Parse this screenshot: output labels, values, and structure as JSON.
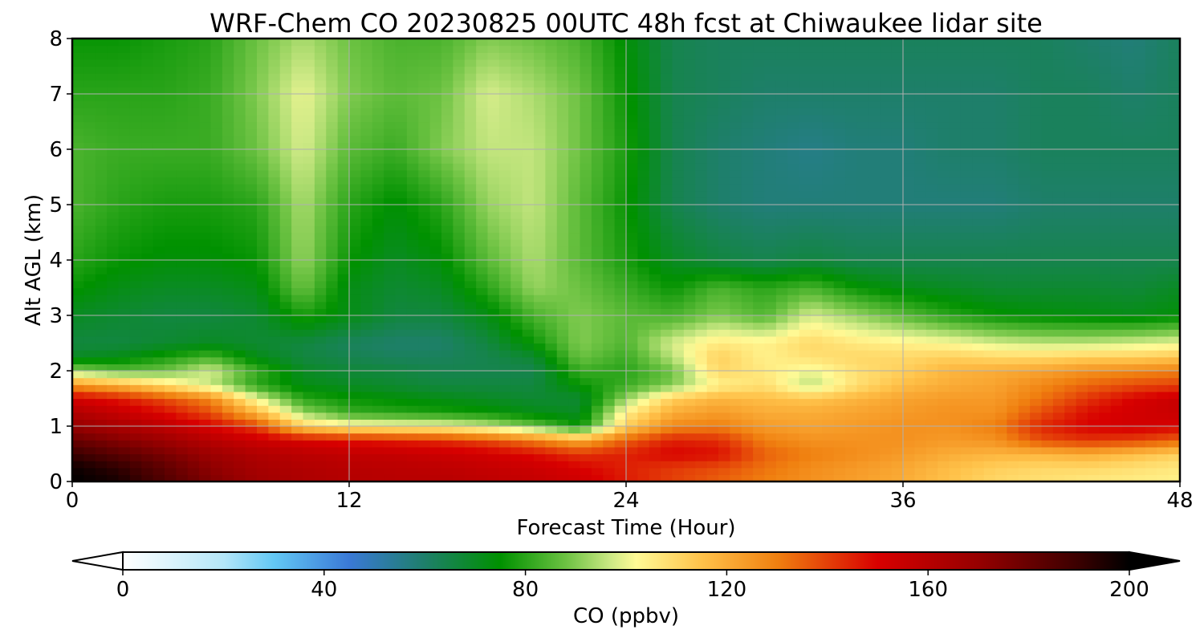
{
  "chart_data": {
    "type": "heatmap",
    "title": "WRF-Chem CO  20230825 00UTC 48h fcst at Chiwaukee lidar site",
    "xlabel": "Forecast Time (Hour)",
    "ylabel": "Alt AGL (km)",
    "xlim": [
      0,
      48
    ],
    "ylim": [
      0,
      8
    ],
    "x_ticks": [
      "0",
      "12",
      "24",
      "36",
      "48"
    ],
    "y_ticks": [
      "0",
      "1",
      "2",
      "3",
      "4",
      "5",
      "6",
      "7",
      "8"
    ],
    "grid": true,
    "x": [
      0,
      2,
      4,
      6,
      8,
      10,
      12,
      14,
      16,
      18,
      20,
      22,
      24,
      26,
      28,
      30,
      32,
      34,
      36,
      38,
      40,
      42,
      44,
      46,
      48
    ],
    "y": [
      0,
      0.25,
      0.5,
      0.75,
      1.0,
      1.25,
      1.5,
      1.75,
      2.0,
      2.25,
      2.5,
      3.0,
      3.5,
      4.0,
      5.0,
      6.0,
      7.0,
      8.0
    ],
    "z": [
      [
        200,
        196,
        185,
        175,
        167,
        163,
        161,
        160,
        160,
        158,
        156,
        153,
        146,
        140,
        135,
        130,
        126,
        123,
        120,
        115,
        110,
        108,
        106,
        105,
        104
      ],
      [
        198,
        192,
        182,
        172,
        165,
        162,
        160,
        159,
        158,
        156,
        154,
        150,
        145,
        141,
        138,
        132,
        127,
        124,
        121,
        116,
        112,
        110,
        110,
        108,
        106
      ],
      [
        190,
        183,
        176,
        168,
        162,
        159,
        157,
        156,
        154,
        152,
        148,
        142,
        145,
        150,
        148,
        135,
        130,
        127,
        124,
        120,
        118,
        118,
        120,
        116,
        112
      ],
      [
        180,
        174,
        168,
        160,
        154,
        150,
        147,
        145,
        143,
        138,
        130,
        120,
        135,
        145,
        143,
        130,
        126,
        126,
        126,
        124,
        126,
        138,
        142,
        140,
        135
      ],
      [
        170,
        164,
        158,
        150,
        140,
        112,
        105,
        103,
        102,
        97,
        88,
        76,
        112,
        128,
        130,
        124,
        122,
        124,
        126,
        126,
        130,
        144,
        150,
        152,
        150
      ],
      [
        162,
        156,
        148,
        138,
        118,
        92,
        82,
        80,
        78,
        76,
        72,
        70,
        105,
        120,
        124,
        120,
        120,
        122,
        124,
        126,
        126,
        138,
        148,
        152,
        155
      ],
      [
        152,
        146,
        138,
        128,
        100,
        80,
        76,
        74,
        72,
        70,
        68,
        68,
        92,
        112,
        118,
        116,
        114,
        118,
        122,
        124,
        124,
        132,
        142,
        150,
        155
      ],
      [
        125,
        118,
        108,
        96,
        80,
        72,
        70,
        68,
        66,
        66,
        66,
        76,
        82,
        90,
        104,
        108,
        95,
        108,
        116,
        120,
        122,
        128,
        134,
        138,
        140
      ],
      [
        92,
        86,
        88,
        98,
        82,
        70,
        67,
        66,
        64,
        64,
        64,
        82,
        80,
        88,
        110,
        106,
        100,
        108,
        112,
        118,
        120,
        122,
        126,
        128,
        130
      ],
      [
        70,
        72,
        78,
        84,
        72,
        66,
        64,
        62,
        62,
        64,
        68,
        88,
        82,
        95,
        112,
        104,
        108,
        110,
        110,
        112,
        110,
        110,
        112,
        112,
        114
      ],
      [
        66,
        66,
        68,
        70,
        68,
        66,
        62,
        60,
        60,
        66,
        76,
        90,
        85,
        98,
        106,
        104,
        110,
        106,
        104,
        102,
        98,
        96,
        96,
        98,
        100
      ],
      [
        70,
        68,
        66,
        66,
        68,
        78,
        72,
        66,
        66,
        72,
        84,
        90,
        86,
        84,
        90,
        85,
        98,
        92,
        86,
        80,
        76,
        74,
        73,
        72,
        74
      ],
      [
        76,
        72,
        70,
        70,
        72,
        88,
        72,
        68,
        70,
        80,
        92,
        88,
        82,
        76,
        84,
        80,
        84,
        76,
        72,
        70,
        68,
        68,
        68,
        67,
        70
      ],
      [
        80,
        76,
        74,
        74,
        76,
        92,
        76,
        70,
        74,
        86,
        94,
        86,
        78,
        70,
        66,
        64,
        66,
        64,
        64,
        64,
        64,
        64,
        64,
        64,
        64
      ],
      [
        84,
        80,
        78,
        78,
        80,
        94,
        80,
        74,
        80,
        92,
        96,
        86,
        76,
        64,
        60,
        58,
        58,
        58,
        58,
        58,
        58,
        60,
        60,
        60,
        60
      ],
      [
        84,
        82,
        82,
        82,
        88,
        98,
        86,
        82,
        90,
        96,
        96,
        88,
        78,
        64,
        60,
        58,
        56,
        58,
        58,
        60,
        60,
        62,
        62,
        62,
        62
      ],
      [
        80,
        80,
        80,
        82,
        90,
        100,
        90,
        86,
        88,
        98,
        94,
        88,
        76,
        64,
        62,
        60,
        60,
        60,
        60,
        60,
        60,
        62,
        62,
        60,
        62
      ],
      [
        76,
        76,
        78,
        80,
        88,
        94,
        88,
        84,
        84,
        90,
        88,
        84,
        74,
        64,
        62,
        62,
        62,
        62,
        62,
        62,
        62,
        62,
        60,
        58,
        62
      ]
    ],
    "colorbar": {
      "label": "CO  (ppbv)",
      "min": 0,
      "max": 200,
      "ticks": [
        "0",
        "40",
        "80",
        "120",
        "160",
        "200"
      ],
      "extend": "both",
      "color_stops": [
        {
          "value": 0,
          "color": "#ffffff"
        },
        {
          "value": 20,
          "color": "#b4e6f8"
        },
        {
          "value": 30,
          "color": "#63c8f5"
        },
        {
          "value": 45,
          "color": "#3a79d6"
        },
        {
          "value": 60,
          "color": "#1e7f6a"
        },
        {
          "value": 75,
          "color": "#009100"
        },
        {
          "value": 88,
          "color": "#6cc242"
        },
        {
          "value": 97,
          "color": "#cde985"
        },
        {
          "value": 102,
          "color": "#fffa96"
        },
        {
          "value": 115,
          "color": "#ffc24a"
        },
        {
          "value": 130,
          "color": "#f08010"
        },
        {
          "value": 150,
          "color": "#d80000"
        },
        {
          "value": 170,
          "color": "#960000"
        },
        {
          "value": 190,
          "color": "#3a0000"
        },
        {
          "value": 200,
          "color": "#000000"
        }
      ]
    }
  }
}
